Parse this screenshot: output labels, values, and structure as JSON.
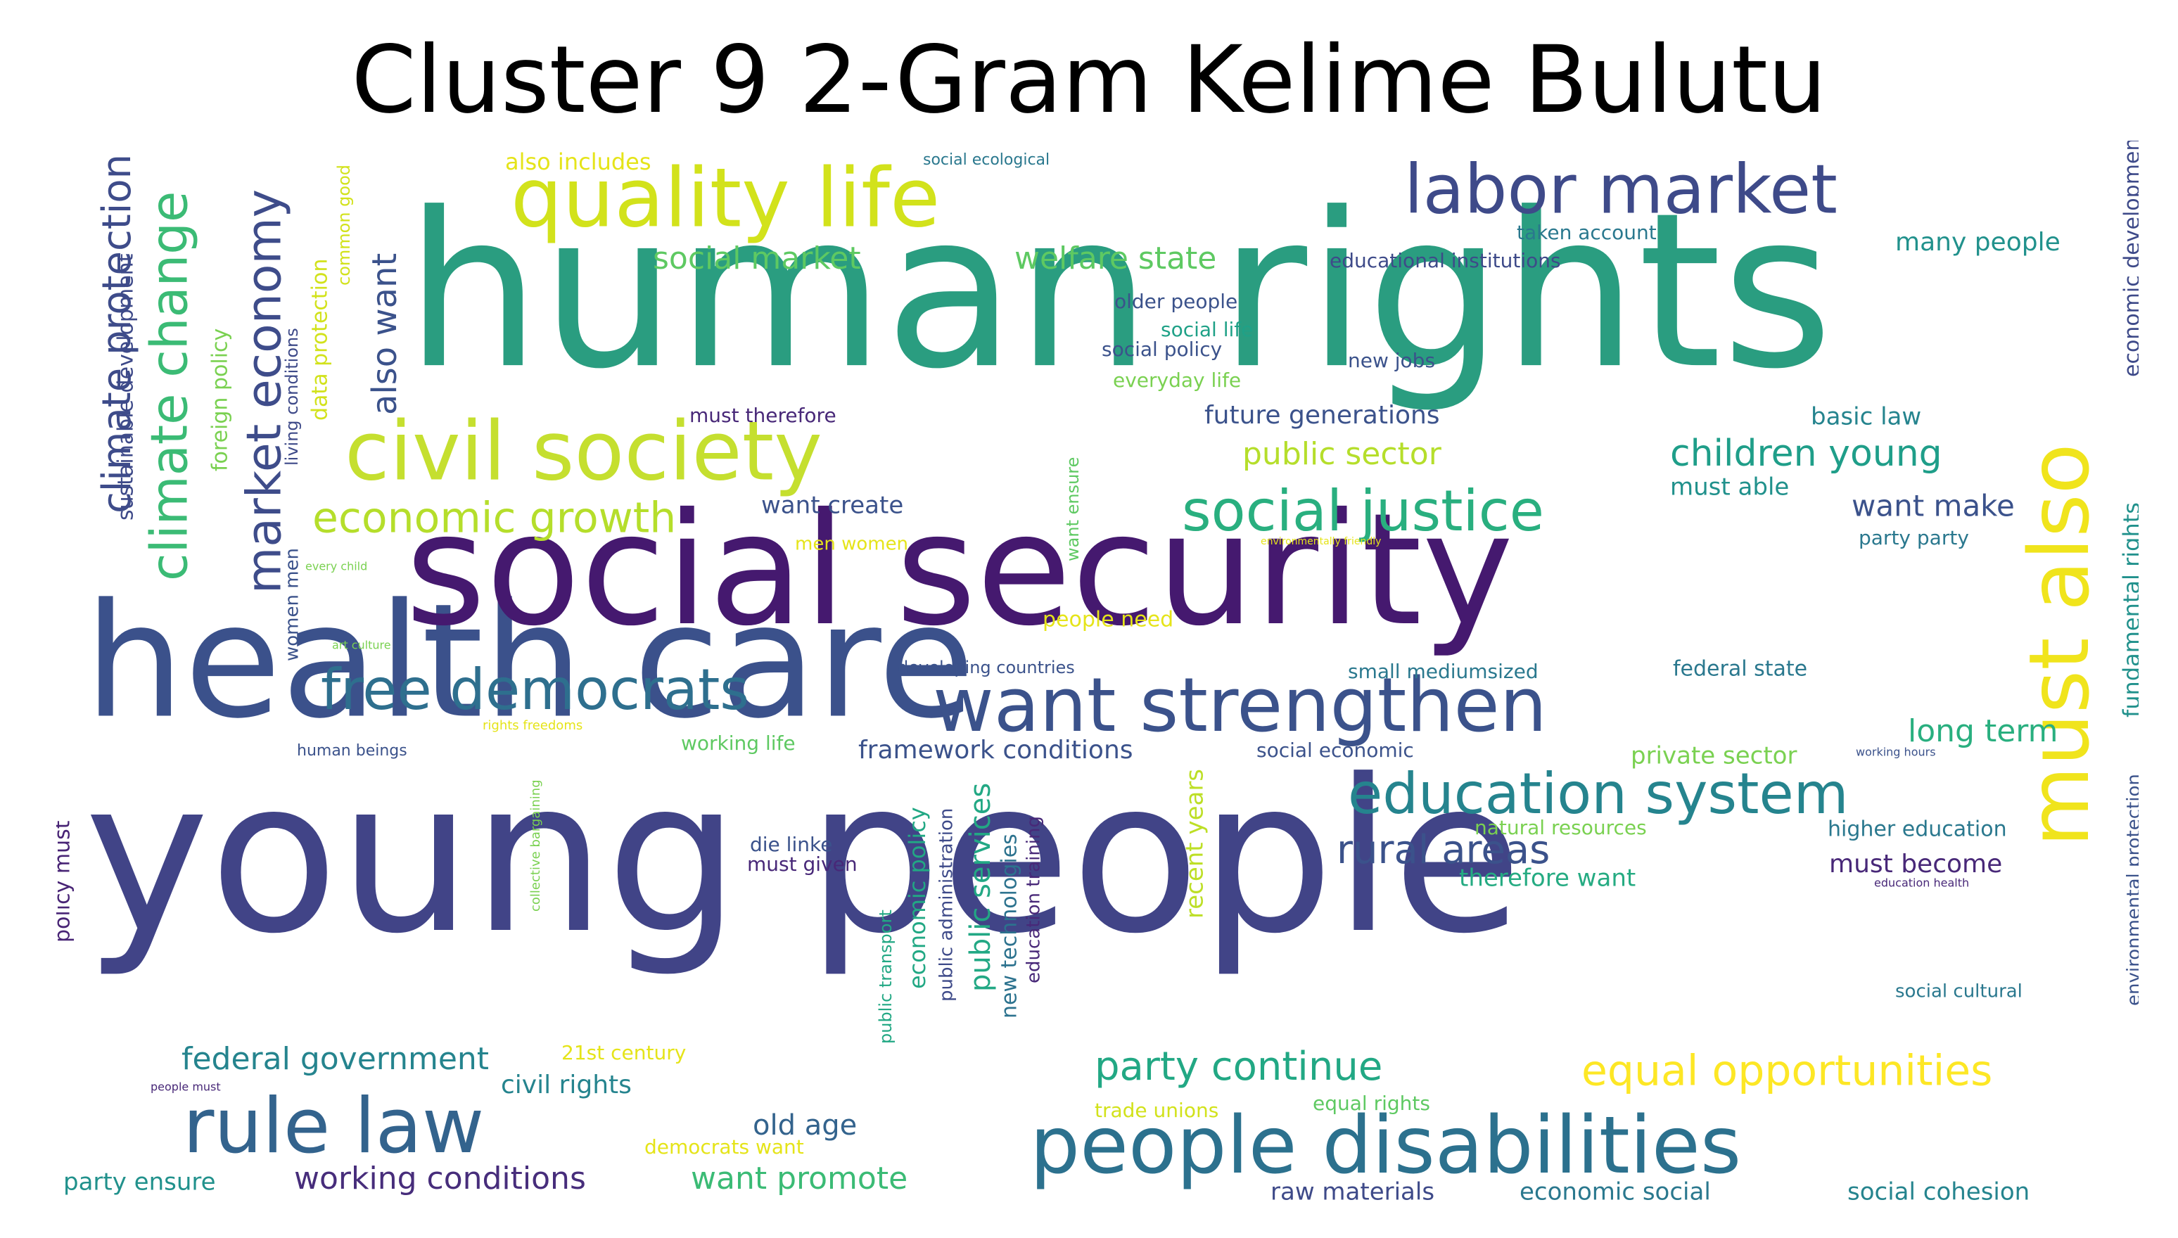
{
  "title": "Cluster 9 2-Gram Kelime Bulutu",
  "palette": "viridis",
  "words": [
    {
      "text": "human rights",
      "color": "#2a9d80"
    },
    {
      "text": "young people",
      "color": "#414487"
    },
    {
      "text": "health care",
      "color": "#3b518b"
    },
    {
      "text": "social security",
      "color": "#45196f"
    },
    {
      "text": "quality life",
      "color": "#d2e21b"
    },
    {
      "text": "civil society",
      "color": "#c5df2f"
    },
    {
      "text": "labor market",
      "color": "#3e4a89"
    },
    {
      "text": "want strengthen",
      "color": "#3b528b"
    },
    {
      "text": "people disabilities",
      "color": "#2c718e"
    },
    {
      "text": "rule law",
      "color": "#33638d"
    },
    {
      "text": "must also",
      "color": "#f0e41c"
    },
    {
      "text": "education system",
      "color": "#25848e"
    },
    {
      "text": "free democrats",
      "color": "#2e6f8e"
    },
    {
      "text": "social justice",
      "color": "#29af7f"
    },
    {
      "text": "climate change",
      "color": "#3bbb75"
    },
    {
      "text": "market economy",
      "color": "#3e4c8a"
    },
    {
      "text": "climate protection",
      "color": "#3e4c8a"
    },
    {
      "text": "economic growth",
      "color": "#b5de2b"
    },
    {
      "text": "equal opportunities",
      "color": "#fde725"
    },
    {
      "text": "party continue",
      "color": "#22a884"
    },
    {
      "text": "rural areas",
      "color": "#3b528b"
    },
    {
      "text": "also want",
      "color": "#3b528b"
    },
    {
      "text": "children young",
      "color": "#1f9e89"
    },
    {
      "text": "social market",
      "color": "#5ec962"
    },
    {
      "text": "welfare state",
      "color": "#5ec962"
    },
    {
      "text": "public sector",
      "color": "#b5de2b"
    },
    {
      "text": "future generations",
      "color": "#3b528b"
    },
    {
      "text": "federal government",
      "color": "#25848e"
    },
    {
      "text": "working conditions",
      "color": "#472d7b"
    },
    {
      "text": "want promote",
      "color": "#3bbb75"
    },
    {
      "text": "old age",
      "color": "#33638d"
    },
    {
      "text": "civil rights",
      "color": "#25848e"
    },
    {
      "text": "long term",
      "color": "#29af7f"
    },
    {
      "text": "want make",
      "color": "#3b528b"
    },
    {
      "text": "many people",
      "color": "#21918c"
    },
    {
      "text": "social cohesion",
      "color": "#25848e"
    },
    {
      "text": "economic social",
      "color": "#2a788e"
    },
    {
      "text": "raw materials",
      "color": "#3e4a89"
    },
    {
      "text": "framework conditions",
      "color": "#3b528b"
    },
    {
      "text": "therefore want",
      "color": "#25ab82"
    },
    {
      "text": "must become",
      "color": "#482878"
    },
    {
      "text": "private sector",
      "color": "#7ad151"
    },
    {
      "text": "higher education",
      "color": "#2a788e"
    },
    {
      "text": "basic law",
      "color": "#25848e"
    },
    {
      "text": "must able",
      "color": "#21918c"
    },
    {
      "text": "want create",
      "color": "#3b528b"
    },
    {
      "text": "party ensure",
      "color": "#21918c"
    },
    {
      "text": "sustainable development",
      "color": "#3e4a89"
    },
    {
      "text": "fundamental rights",
      "color": "#21918c"
    },
    {
      "text": "economic development",
      "color": "#3e4a89"
    },
    {
      "text": "data protection",
      "color": "#d2e21b"
    },
    {
      "text": "foreign policy",
      "color": "#7ad151"
    },
    {
      "text": "public services",
      "color": "#22a884"
    },
    {
      "text": "economic policy",
      "color": "#22a884"
    },
    {
      "text": "new technologies",
      "color": "#2c728e"
    },
    {
      "text": "recent years",
      "color": "#bddf26"
    },
    {
      "text": "policy must",
      "color": "#482475"
    },
    {
      "text": "environmental protection",
      "color": "#3b528b"
    },
    {
      "text": "also includes",
      "color": "#e5e419"
    },
    {
      "text": "educational institutions",
      "color": "#3e4a89"
    },
    {
      "text": "taken account",
      "color": "#2a788e"
    },
    {
      "text": "older people",
      "color": "#3b528b"
    },
    {
      "text": "social life",
      "color": "#1fa187"
    },
    {
      "text": "social policy",
      "color": "#3b528b"
    },
    {
      "text": "everyday life",
      "color": "#7ad151"
    },
    {
      "text": "new jobs",
      "color": "#3b528b"
    },
    {
      "text": "must therefore",
      "color": "#482878"
    },
    {
      "text": "men women",
      "color": "#e5e419"
    },
    {
      "text": "people need",
      "color": "#e5e419"
    },
    {
      "text": "developing countries",
      "color": "#3b528b"
    },
    {
      "text": "small mediumsized",
      "color": "#2a788e"
    },
    {
      "text": "federal state",
      "color": "#2a788e"
    },
    {
      "text": "working life",
      "color": "#5ec962"
    },
    {
      "text": "social economic",
      "color": "#3b528b"
    },
    {
      "text": "die linke",
      "color": "#3b528b"
    },
    {
      "text": "must given",
      "color": "#482878"
    },
    {
      "text": "natural resources",
      "color": "#7ad151"
    },
    {
      "text": "21st century",
      "color": "#e5e419"
    },
    {
      "text": "trade unions",
      "color": "#d2e21b"
    },
    {
      "text": "equal rights",
      "color": "#5ec962"
    },
    {
      "text": "democrats want",
      "color": "#e5e419"
    },
    {
      "text": "social cultural",
      "color": "#2a788e"
    },
    {
      "text": "party party",
      "color": "#2a788e"
    },
    {
      "text": "women men",
      "color": "#3b528b"
    },
    {
      "text": "common good",
      "color": "#d2e21b"
    },
    {
      "text": "living conditions",
      "color": "#3e4a89"
    },
    {
      "text": "public transport",
      "color": "#22a884"
    },
    {
      "text": "public administration",
      "color": "#3e4a89"
    },
    {
      "text": "education training",
      "color": "#482878"
    },
    {
      "text": "want ensure",
      "color": "#5ec962"
    },
    {
      "text": "social ecological",
      "color": "#2a788e"
    },
    {
      "text": "environmentally friendly",
      "color": "#e5e419"
    },
    {
      "text": "every child",
      "color": "#7ad151"
    },
    {
      "text": "art culture",
      "color": "#7ad151"
    },
    {
      "text": "human beings",
      "color": "#3b528b"
    },
    {
      "text": "rights freedoms",
      "color": "#e5e419"
    },
    {
      "text": "collective bargaining",
      "color": "#7ad151"
    },
    {
      "text": "people must",
      "color": "#482878"
    },
    {
      "text": "working hours",
      "color": "#3b528b"
    },
    {
      "text": "education health",
      "color": "#482878"
    }
  ]
}
